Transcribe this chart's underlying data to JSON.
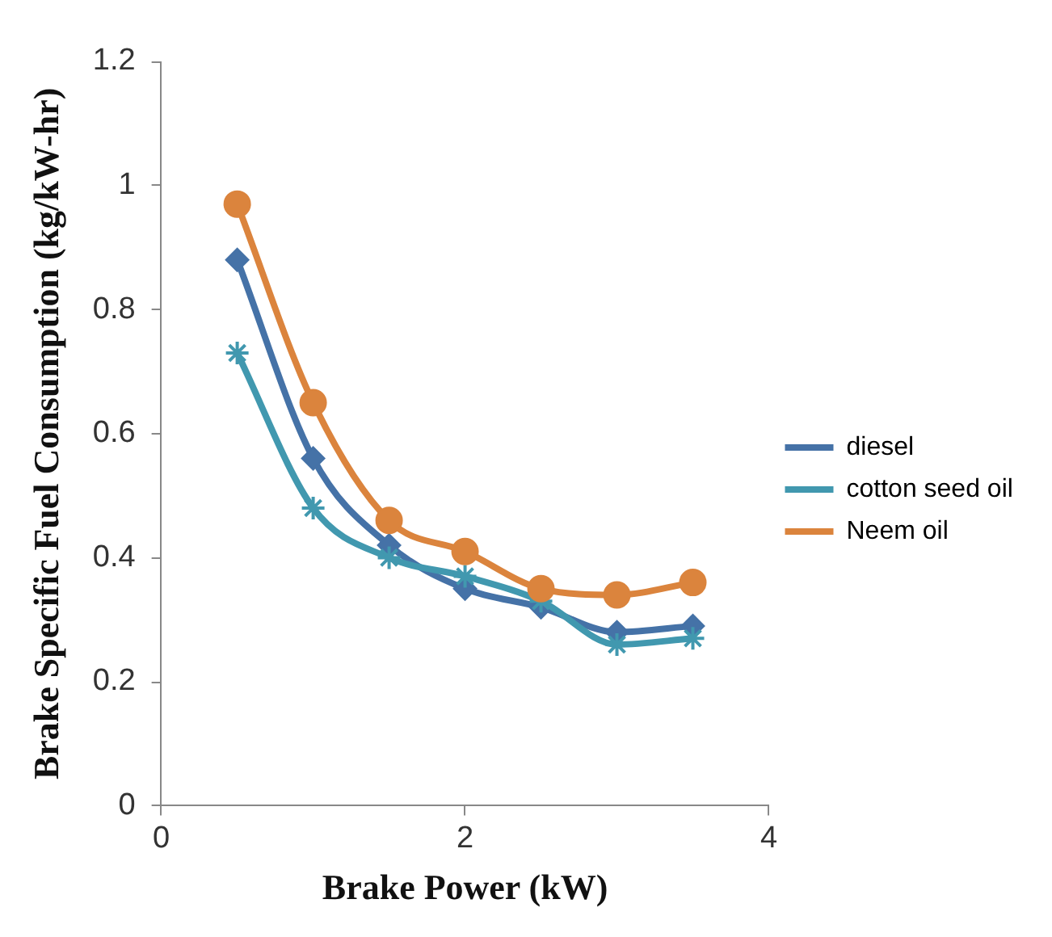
{
  "chart_data": {
    "type": "line",
    "xlabel": "Brake Power (kW)",
    "ylabel": "Brake Specific Fuel Consumption (kg/kW-hr)",
    "x": [
      0.5,
      1,
      1.5,
      2,
      2.5,
      3,
      3.5
    ],
    "series": [
      {
        "name": "diesel",
        "color": "#4572a7",
        "marker": "diamond",
        "values": [
          0.88,
          0.56,
          0.42,
          0.35,
          0.32,
          0.28,
          0.29
        ]
      },
      {
        "name": "cotton seed oil",
        "color": "#4198af",
        "marker": "cross",
        "values": [
          0.73,
          0.48,
          0.4,
          0.37,
          0.33,
          0.26,
          0.27
        ]
      },
      {
        "name": "Neem oil",
        "color": "#db843d",
        "marker": "circle",
        "values": [
          0.97,
          0.65,
          0.46,
          0.41,
          0.35,
          0.34,
          0.36
        ]
      }
    ],
    "xlim": [
      0,
      4
    ],
    "xticks": [
      0,
      2,
      4
    ],
    "ylim": [
      0,
      1.2
    ],
    "yticks": [
      0,
      0.2,
      0.4,
      0.6,
      0.8,
      1,
      1.2
    ],
    "grid": false,
    "legend": "right"
  }
}
